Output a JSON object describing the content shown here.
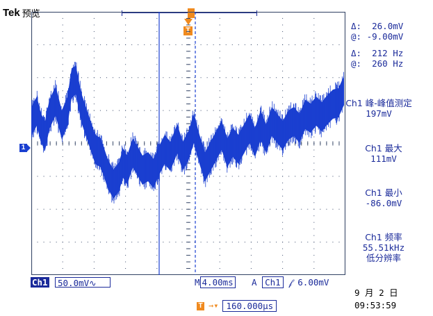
{
  "header": {
    "brand": "Tek",
    "mode": "预览"
  },
  "trigger": {
    "flag_label": "T",
    "delay_prefix": "T",
    "delay_value": "160.000µs"
  },
  "channel": {
    "ref_label": "1",
    "tag": "Ch1",
    "scale": "50.0mV",
    "coupling_symbol": "∿"
  },
  "cursors": {
    "delta_v": {
      "symbol": "Δ:",
      "value": "26.0mV"
    },
    "at_v": {
      "symbol": "@:",
      "value": "-9.00mV"
    },
    "delta_f": {
      "symbol": "Δ:",
      "value": "212 Hz"
    },
    "at_f": {
      "symbol": "@:",
      "value": "260 Hz"
    }
  },
  "measurements": [
    {
      "label": "Ch1 峰-峰值测定",
      "value": "197mV"
    },
    {
      "label": "Ch1 最大",
      "value": "111mV"
    },
    {
      "label": "Ch1 最小",
      "value": "-86.0mV"
    },
    {
      "label": "Ch1 频率",
      "value": "55.51kHz",
      "note": "低分辨率"
    }
  ],
  "timebase": {
    "prefix": "M",
    "value": "4.00ms",
    "trigger_mode": "A",
    "trigger_source": "Ch1",
    "slope_symbol": "𝒻",
    "trigger_level": "6.00mV"
  },
  "clock": {
    "date": "9 月 2 日",
    "time": "09:53:59"
  },
  "colors": {
    "trace": "#1a3fd0",
    "grid": "#3a4a6a",
    "accent": "#f08a1e",
    "text": "#1a2a9a"
  }
}
